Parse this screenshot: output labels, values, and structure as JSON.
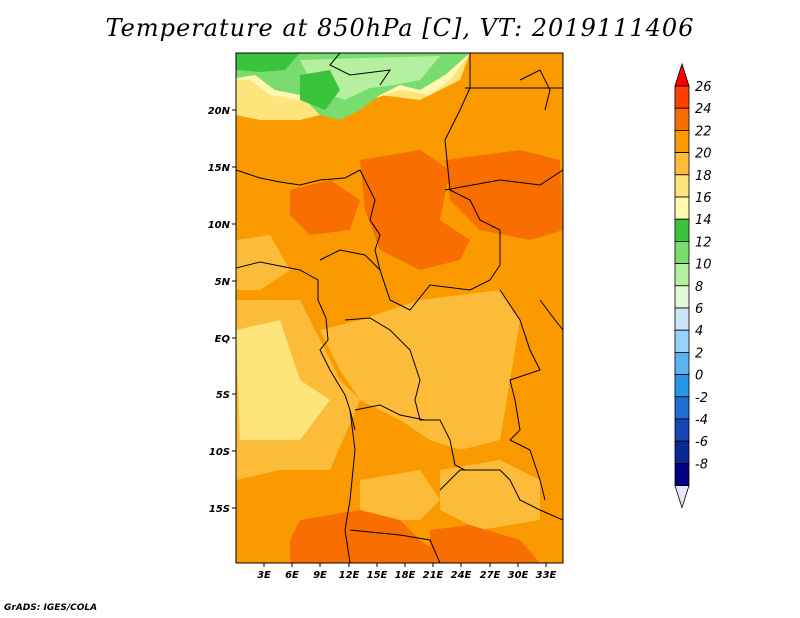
{
  "title": "Temperature at 850hPa [C], VT: 2019111406",
  "credit": "GrADS: IGES/COLA",
  "map": {
    "lat_labels": [
      "20N",
      "15N",
      "10N",
      "5N",
      "EQ",
      "5S",
      "10S",
      "15S"
    ],
    "lon_labels": [
      "3E",
      "6E",
      "9E",
      "12E",
      "15E",
      "18E",
      "21E",
      "24E",
      "27E",
      "30E",
      "33E"
    ]
  },
  "colorbar": {
    "labels": [
      "26",
      "24",
      "22",
      "20",
      "18",
      "16",
      "14",
      "12",
      "10",
      "8",
      "6",
      "4",
      "2",
      "0",
      "-2",
      "-4",
      "-6",
      "-8"
    ],
    "colors": [
      "#ff0000",
      "#ff4000",
      "#f96e00",
      "#fa9a00",
      "#fcbc3a",
      "#fde47b",
      "#fff8b0",
      "#3cc33c",
      "#78dc6e",
      "#b4f0a0",
      "#e0fad8",
      "#c8e6f8",
      "#96d2fa",
      "#5ab4f0",
      "#2896e6",
      "#1e6ed2",
      "#1446b4",
      "#0a2896",
      "#000080",
      "#e6e6fa"
    ]
  }
}
